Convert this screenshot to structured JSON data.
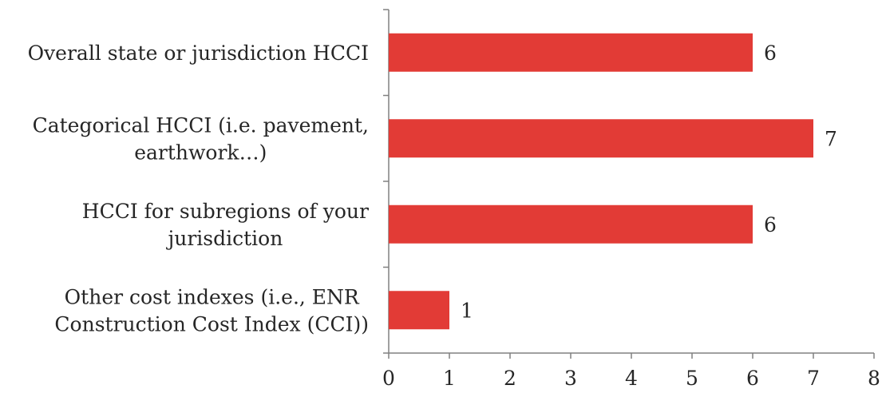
{
  "chart_data": {
    "type": "bar",
    "orientation": "horizontal",
    "categories": [
      [
        "Overall state or jurisdiction HCCI"
      ],
      [
        "Categorical HCCI (i.e. pavement,",
        "earthwork…)"
      ],
      [
        "HCCI for subregions of your",
        "jurisdiction"
      ],
      [
        "Other cost indexes (i.e., ENR",
        "Construction Cost Index (CCI))"
      ]
    ],
    "values": [
      6,
      7,
      6,
      1
    ],
    "data_labels": [
      "6",
      "7",
      "6",
      "1"
    ],
    "xlim": [
      0,
      8
    ],
    "xticks": [
      "0",
      "1",
      "2",
      "3",
      "4",
      "5",
      "6",
      "7",
      "8"
    ],
    "grid": false,
    "legend": "none",
    "colors": {
      "bar": "#e23b36",
      "axis": "#808080",
      "text": "#262626"
    }
  }
}
